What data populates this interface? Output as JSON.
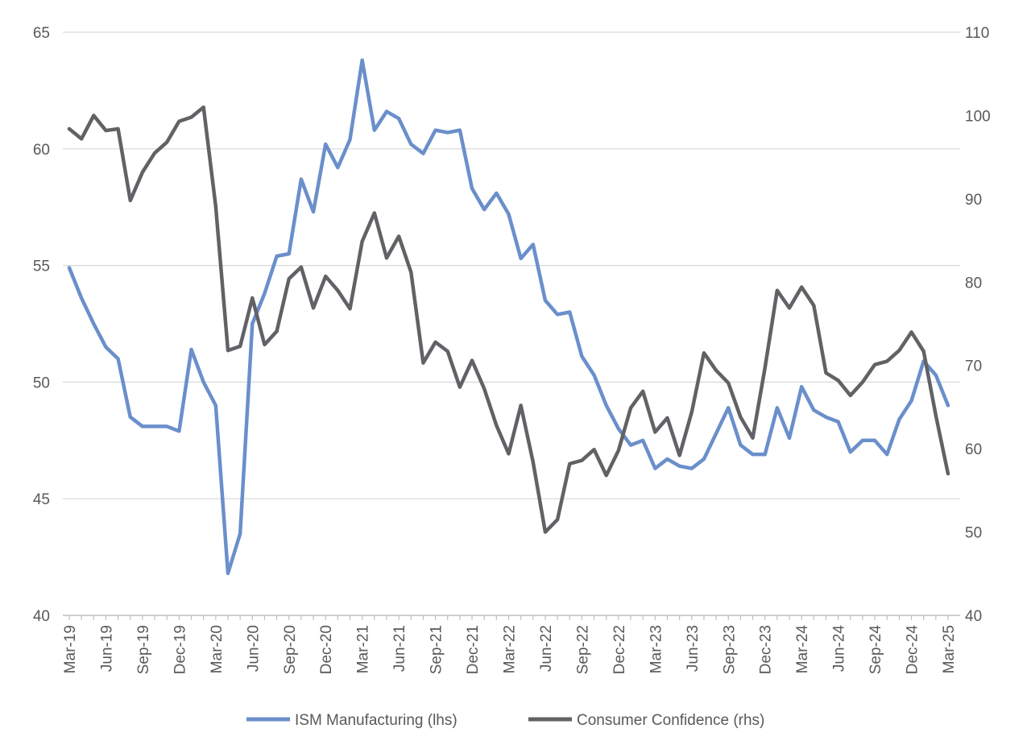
{
  "chart_data": {
    "type": "line",
    "title": "",
    "xlabel": "",
    "ylabel": "",
    "y2label": "",
    "grid": true,
    "legend_position": "bottom",
    "ylim_left": [
      40,
      65
    ],
    "ylim_right": [
      40,
      110
    ],
    "y_ticks_left": [
      "40",
      "45",
      "50",
      "55",
      "60",
      "65"
    ],
    "y_ticks_right": [
      "40",
      "50",
      "60",
      "70",
      "80",
      "90",
      "100",
      "110"
    ],
    "x_tick_labels": [
      "Mar-19",
      "Jun-19",
      "Sep-19",
      "Dec-19",
      "Mar-20",
      "Jun-20",
      "Sep-20",
      "Dec-20",
      "Mar-21",
      "Jun-21",
      "Sep-21",
      "Dec-21",
      "Mar-22",
      "Jun-22",
      "Sep-22",
      "Dec-22",
      "Mar-23",
      "Jun-23",
      "Sep-23",
      "Dec-23",
      "Mar-24",
      "Jun-24",
      "Sep-24",
      "Dec-24",
      "Mar-25"
    ],
    "x": [
      "Mar-19",
      "Apr-19",
      "May-19",
      "Jun-19",
      "Jul-19",
      "Aug-19",
      "Sep-19",
      "Oct-19",
      "Nov-19",
      "Dec-19",
      "Jan-20",
      "Feb-20",
      "Mar-20",
      "Apr-20",
      "May-20",
      "Jun-20",
      "Jul-20",
      "Aug-20",
      "Sep-20",
      "Oct-20",
      "Nov-20",
      "Dec-20",
      "Jan-21",
      "Feb-21",
      "Mar-21",
      "Apr-21",
      "May-21",
      "Jun-21",
      "Jul-21",
      "Aug-21",
      "Sep-21",
      "Oct-21",
      "Nov-21",
      "Dec-21",
      "Jan-22",
      "Feb-22",
      "Mar-22",
      "Apr-22",
      "May-22",
      "Jun-22",
      "Jul-22",
      "Aug-22",
      "Sep-22",
      "Oct-22",
      "Nov-22",
      "Dec-22",
      "Jan-23",
      "Feb-23",
      "Mar-23",
      "Apr-23",
      "May-23",
      "Jun-23",
      "Jul-23",
      "Aug-23",
      "Sep-23",
      "Oct-23",
      "Nov-23",
      "Dec-23",
      "Jan-24",
      "Feb-24",
      "Mar-24",
      "Apr-24",
      "May-24",
      "Jun-24",
      "Jul-24",
      "Aug-24",
      "Sep-24",
      "Oct-24",
      "Nov-24",
      "Dec-24",
      "Jan-25",
      "Feb-25",
      "Mar-25"
    ],
    "series": [
      {
        "name": "ISM Manufacturing (lhs)",
        "axis": "left",
        "color": "#6a8fcb",
        "values": [
          54.9,
          53.6,
          52.5,
          51.5,
          51.0,
          48.5,
          48.1,
          48.1,
          48.1,
          47.9,
          51.4,
          50.0,
          49.0,
          41.8,
          43.5,
          52.5,
          53.8,
          55.4,
          55.5,
          58.7,
          57.3,
          60.2,
          59.2,
          60.4,
          63.8,
          60.8,
          61.6,
          61.3,
          60.2,
          59.8,
          60.8,
          60.7,
          60.8,
          58.3,
          57.4,
          58.1,
          57.2,
          55.3,
          55.9,
          53.5,
          52.9,
          53.0,
          51.1,
          50.3,
          49.0,
          48.0,
          47.3,
          47.5,
          46.3,
          46.7,
          46.4,
          46.3,
          46.7,
          47.8,
          48.9,
          47.3,
          46.9,
          46.9,
          48.9,
          47.6,
          49.8,
          48.8,
          48.5,
          48.3,
          47.0,
          47.5,
          47.5,
          46.9,
          48.4,
          49.2,
          50.9,
          50.3,
          49.0
        ]
      },
      {
        "name": "Consumer Confidence (rhs)",
        "axis": "right",
        "color": "#616266",
        "values": [
          98.4,
          97.2,
          100.0,
          98.2,
          98.4,
          89.8,
          93.2,
          95.5,
          96.8,
          99.3,
          99.8,
          101.0,
          89.1,
          71.8,
          72.3,
          78.1,
          72.5,
          74.1,
          80.4,
          81.8,
          76.9,
          80.7,
          79.0,
          76.8,
          84.9,
          88.3,
          82.9,
          85.5,
          81.2,
          70.3,
          72.8,
          71.7,
          67.4,
          70.6,
          67.2,
          62.8,
          59.4,
          65.2,
          58.4,
          50.0,
          51.5,
          58.2,
          58.6,
          59.9,
          56.8,
          59.8,
          64.9,
          66.9,
          62.0,
          63.7,
          59.2,
          64.4,
          71.5,
          69.4,
          67.9,
          63.8,
          61.3,
          69.7,
          79.0,
          76.9,
          79.4,
          77.2,
          69.1,
          68.2,
          66.4,
          68.0,
          70.1,
          70.5,
          71.8,
          74.0,
          71.7,
          64.0,
          57.0
        ]
      }
    ]
  }
}
